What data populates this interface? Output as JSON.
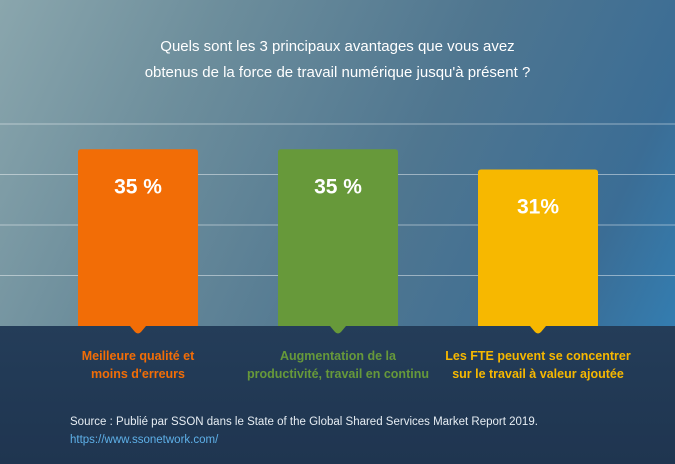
{
  "chart_data": {
    "type": "bar",
    "title_lines": [
      "Quels sont les 3 principaux avantages que vous avez",
      "obtenus de la force de travail numérique jusqu'à présent ?"
    ],
    "categories": [
      [
        "Meilleure qualité et",
        "moins d'erreurs"
      ],
      [
        "Augmentation de la",
        "productivité, travail en continu"
      ],
      [
        "Les FTE peuvent se concentrer",
        "sur le travail à valeur ajoutée"
      ]
    ],
    "values": [
      35,
      35,
      31
    ],
    "value_labels": [
      "35 %",
      "35 %",
      "31%"
    ],
    "colors": [
      "#f26d06",
      "#67993a",
      "#f7b800"
    ],
    "ylim": [
      0,
      40
    ],
    "grid": true,
    "xlabel": "",
    "ylabel": ""
  },
  "source": {
    "text": "Source : Publié par SSON dans le  State of the Global Shared Services Market Report 2019.",
    "url": "https://www.ssonetwork.com/"
  }
}
